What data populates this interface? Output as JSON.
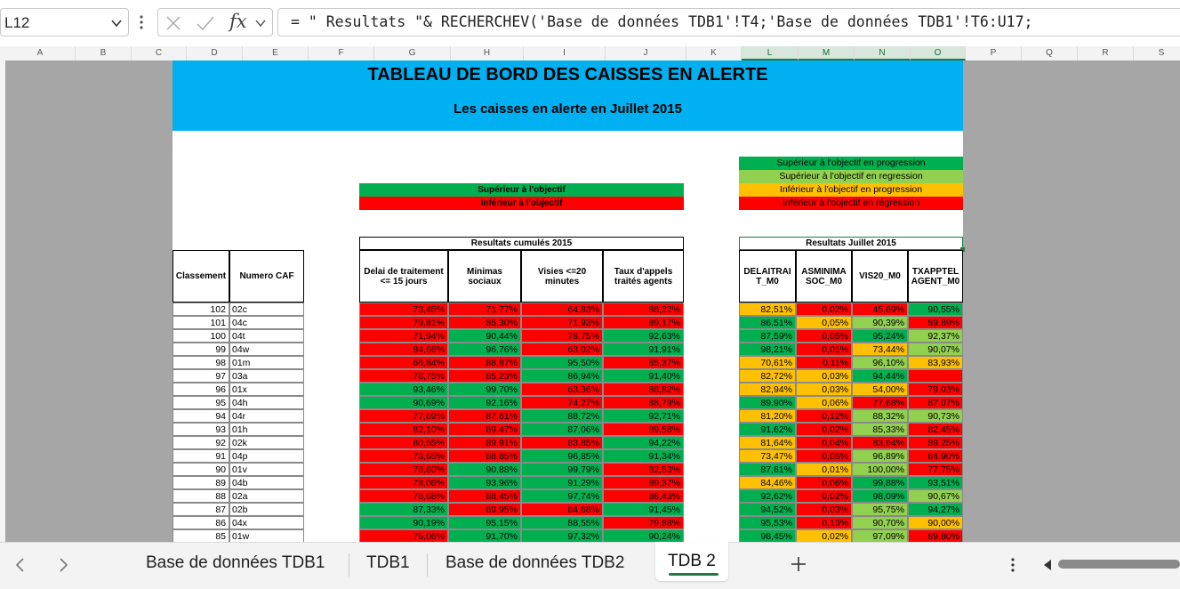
{
  "formula_bar": {
    "cell_ref": "L12",
    "fx_label": "fx",
    "formula": "= \" Resultats \"& RECHERCHEV('Base de données TDB1'!T4;'Base de données TDB1'!T6:U17;"
  },
  "columns": [
    "A",
    "B",
    "C",
    "D",
    "E",
    "F",
    "G",
    "H",
    "I",
    "J",
    "K",
    "L",
    "M",
    "N",
    "O",
    "P",
    "Q",
    "R",
    "S"
  ],
  "selected_columns": [
    "L",
    "M",
    "N",
    "O"
  ],
  "dashboard": {
    "title": "TABLEAU DE BORD DES CAISSES EN ALERTE",
    "subtitle": "Les caisses en alerte en Juillet 2015",
    "legend_left": [
      "Supérieur à l'objectif",
      "Inférieur à l'objectif"
    ],
    "legend_right": [
      "Supérieur à l'objectif en progression",
      "Supérieur à l'objectif en regression",
      "Inférieur à l'objectif en progression",
      "Inférieur à l'objectif en régression"
    ],
    "group_cumul": "Resultats cumulés 2015",
    "group_month": "Resultats Juillet 2015",
    "headers": {
      "classement": "Classement",
      "numero": "Numero CAF",
      "delai": "Delai de traitement <= 15 jours",
      "minimas": "Minimas sociaux",
      "visites": "Visies <=20 minutes",
      "appels": "Taux d'appels traités agents",
      "m_delai": "DELAITRAIT_M0",
      "m_asmin": "ASMINIMASOC_M0",
      "m_vis": "VIS20_M0",
      "m_tx": "TXAPPTELAGENT_M0"
    }
  },
  "colors": {
    "green": "#00b050",
    "red": "#ff0000",
    "light_green": "#92d050",
    "orange": "#ffc000",
    "banner": "#00b0f0",
    "excel_green": "#1f7a45"
  },
  "rows": [
    {
      "rank": "102",
      "caf": "02c",
      "cum": [
        [
          "73,45%",
          "r"
        ],
        [
          "71,77%",
          "r"
        ],
        [
          "64,83%",
          "r"
        ],
        [
          "88,22%",
          "r"
        ]
      ],
      "m": [
        [
          "82,51%",
          "o"
        ],
        [
          "0,02%",
          "r"
        ],
        [
          "45,69%",
          "r"
        ],
        [
          "90,55%",
          "g"
        ]
      ]
    },
    {
      "rank": "101",
      "caf": "04c",
      "cum": [
        [
          "79,81%",
          "r"
        ],
        [
          "85,30%",
          "r"
        ],
        [
          "71,93%",
          "r"
        ],
        [
          "89,17%",
          "r"
        ]
      ],
      "m": [
        [
          "86,51%",
          "g"
        ],
        [
          "0,05%",
          "o"
        ],
        [
          "90,39%",
          "lg"
        ],
        [
          "89,89%",
          "r"
        ]
      ]
    },
    {
      "rank": "100",
      "caf": "04t",
      "cum": [
        [
          "71,94%",
          "r"
        ],
        [
          "90,44%",
          "g"
        ],
        [
          "78,75%",
          "r"
        ],
        [
          "92,63%",
          "g"
        ]
      ],
      "m": [
        [
          "87,59%",
          "g"
        ],
        [
          "0,05%",
          "r"
        ],
        [
          "95,24%",
          "g"
        ],
        [
          "92,37%",
          "lg"
        ]
      ]
    },
    {
      "rank": "99",
      "caf": "04w",
      "cum": [
        [
          "84,66%",
          "r"
        ],
        [
          "96,76%",
          "g"
        ],
        [
          "63,02%",
          "r"
        ],
        [
          "91,91%",
          "g"
        ]
      ],
      "m": [
        [
          "98,21%",
          "g"
        ],
        [
          "0,01%",
          "r"
        ],
        [
          "73,44%",
          "o"
        ],
        [
          "90,07%",
          "lg"
        ]
      ]
    },
    {
      "rank": "98",
      "caf": "01m",
      "cum": [
        [
          "66,84%",
          "r"
        ],
        [
          "88,87%",
          "r"
        ],
        [
          "95,50%",
          "g"
        ],
        [
          "85,37%",
          "r"
        ]
      ],
      "m": [
        [
          "70,61%",
          "o"
        ],
        [
          "0,11%",
          "r"
        ],
        [
          "96,10%",
          "lg"
        ],
        [
          "83,93%",
          "o"
        ]
      ]
    },
    {
      "rank": "97",
      "caf": "03a",
      "cum": [
        [
          "78,75%",
          "r"
        ],
        [
          "85,23%",
          "r"
        ],
        [
          "86,94%",
          "g"
        ],
        [
          "91,40%",
          "g"
        ]
      ],
      "m": [
        [
          "82,72%",
          "o"
        ],
        [
          "0,03%",
          "o"
        ],
        [
          "94,44%",
          "g"
        ],
        [
          "",
          "r"
        ]
      ]
    },
    {
      "rank": "96",
      "caf": "01x",
      "cum": [
        [
          "93,46%",
          "g"
        ],
        [
          "99,70%",
          "g"
        ],
        [
          "63,36%",
          "r"
        ],
        [
          "88,82%",
          "r"
        ]
      ],
      "m": [
        [
          "82,94%",
          "o"
        ],
        [
          "0,03%",
          "o"
        ],
        [
          "54,00%",
          "o"
        ],
        [
          "79,03%",
          "r"
        ]
      ]
    },
    {
      "rank": "95",
      "caf": "04h",
      "cum": [
        [
          "90,69%",
          "g"
        ],
        [
          "92,16%",
          "g"
        ],
        [
          "74,27%",
          "r"
        ],
        [
          "88,79%",
          "r"
        ]
      ],
      "m": [
        [
          "89,90%",
          "g"
        ],
        [
          "0,06%",
          "o"
        ],
        [
          "77,68%",
          "r"
        ],
        [
          "87,07%",
          "r"
        ]
      ]
    },
    {
      "rank": "94",
      "caf": "04r",
      "cum": [
        [
          "77,69%",
          "r"
        ],
        [
          "87,61%",
          "r"
        ],
        [
          "88,72%",
          "g"
        ],
        [
          "92,71%",
          "g"
        ]
      ],
      "m": [
        [
          "81,20%",
          "o"
        ],
        [
          "0,12%",
          "r"
        ],
        [
          "88,32%",
          "lg"
        ],
        [
          "90,73%",
          "lg"
        ]
      ]
    },
    {
      "rank": "93",
      "caf": "01h",
      "cum": [
        [
          "82,10%",
          "r"
        ],
        [
          "89,47%",
          "r"
        ],
        [
          "87,06%",
          "g"
        ],
        [
          "89,58%",
          "r"
        ]
      ],
      "m": [
        [
          "91,62%",
          "g"
        ],
        [
          "0,02%",
          "r"
        ],
        [
          "85,33%",
          "lg"
        ],
        [
          "82,45%",
          "r"
        ]
      ]
    },
    {
      "rank": "92",
      "caf": "02k",
      "cum": [
        [
          "80,55%",
          "r"
        ],
        [
          "89,91%",
          "r"
        ],
        [
          "83,85%",
          "r"
        ],
        [
          "94,22%",
          "g"
        ]
      ],
      "m": [
        [
          "81,64%",
          "o"
        ],
        [
          "0,04%",
          "r"
        ],
        [
          "83,94%",
          "r"
        ],
        [
          "89,25%",
          "r"
        ]
      ]
    },
    {
      "rank": "91",
      "caf": "04p",
      "cum": [
        [
          "73,65%",
          "r"
        ],
        [
          "88,85%",
          "r"
        ],
        [
          "96,85%",
          "g"
        ],
        [
          "91,34%",
          "g"
        ]
      ],
      "m": [
        [
          "73,47%",
          "o"
        ],
        [
          "0,05%",
          "r"
        ],
        [
          "96,89%",
          "lg"
        ],
        [
          "84,90%",
          "r"
        ]
      ]
    },
    {
      "rank": "90",
      "caf": "01v",
      "cum": [
        [
          "78,60%",
          "r"
        ],
        [
          "90,88%",
          "g"
        ],
        [
          "99,79%",
          "g"
        ],
        [
          "82,53%",
          "r"
        ]
      ],
      "m": [
        [
          "87,61%",
          "g"
        ],
        [
          "0,01%",
          "o"
        ],
        [
          "100,00%",
          "lg"
        ],
        [
          "77,75%",
          "r"
        ]
      ]
    },
    {
      "rank": "89",
      "caf": "04b",
      "cum": [
        [
          "78,06%",
          "r"
        ],
        [
          "93,96%",
          "g"
        ],
        [
          "91,29%",
          "g"
        ],
        [
          "89,37%",
          "r"
        ]
      ],
      "m": [
        [
          "84,46%",
          "o"
        ],
        [
          "0,06%",
          "r"
        ],
        [
          "99,88%",
          "g"
        ],
        [
          "93,51%",
          "g"
        ]
      ]
    },
    {
      "rank": "88",
      "caf": "02a",
      "cum": [
        [
          "78,68%",
          "r"
        ],
        [
          "88,45%",
          "r"
        ],
        [
          "97,74%",
          "g"
        ],
        [
          "88,43%",
          "r"
        ]
      ],
      "m": [
        [
          "92,62%",
          "g"
        ],
        [
          "0,02%",
          "r"
        ],
        [
          "98,09%",
          "g"
        ],
        [
          "90,67%",
          "lg"
        ]
      ]
    },
    {
      "rank": "87",
      "caf": "02b",
      "cum": [
        [
          "87,33%",
          "g"
        ],
        [
          "89,95%",
          "r"
        ],
        [
          "84,68%",
          "r"
        ],
        [
          "91,45%",
          "g"
        ]
      ],
      "m": [
        [
          "94,52%",
          "g"
        ],
        [
          "0,03%",
          "r"
        ],
        [
          "95,75%",
          "lg"
        ],
        [
          "94,27%",
          "g"
        ]
      ]
    },
    {
      "rank": "86",
      "caf": "04x",
      "cum": [
        [
          "90,19%",
          "g"
        ],
        [
          "95,15%",
          "g"
        ],
        [
          "88,55%",
          "g"
        ],
        [
          "79,88%",
          "r"
        ]
      ],
      "m": [
        [
          "95,53%",
          "g"
        ],
        [
          "0,13%",
          "r"
        ],
        [
          "90,70%",
          "lg"
        ],
        [
          "90,00%",
          "o"
        ]
      ]
    },
    {
      "rank": "85",
      "caf": "01w",
      "cum": [
        [
          "76,06%",
          "r"
        ],
        [
          "91,70%",
          "g"
        ],
        [
          "97,32%",
          "g"
        ],
        [
          "90,24%",
          "g"
        ]
      ],
      "m": [
        [
          "98,45%",
          "g"
        ],
        [
          "0,02%",
          "o"
        ],
        [
          "97,09%",
          "lg"
        ],
        [
          "89,80%",
          "r"
        ]
      ]
    }
  ],
  "tabs": [
    "Base de données TDB1",
    "TDB1",
    "Base de données TDB2",
    "TDB 2"
  ],
  "active_tab": "TDB 2"
}
